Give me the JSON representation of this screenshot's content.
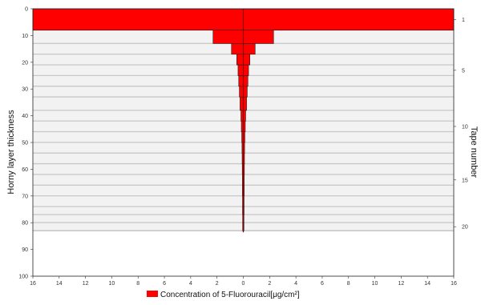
{
  "chart_data": {
    "type": "bar",
    "orientation": "horizontal-symmetric",
    "left_axis": {
      "label": "Horny layer thickness",
      "range": [
        0,
        100
      ],
      "ticks": [
        "0",
        "10",
        "20",
        "30",
        "40",
        "50",
        "60",
        "70",
        "80",
        "90",
        "100"
      ]
    },
    "right_axis": {
      "label": "Tape number",
      "ticks": [
        {
          "label": "1",
          "tape": 1
        },
        {
          "label": "5",
          "tape": 5
        },
        {
          "label": "10",
          "tape": 10
        },
        {
          "label": "15",
          "tape": 15
        },
        {
          "label": "20",
          "tape": 20
        }
      ]
    },
    "x_axis": {
      "range": [
        -16,
        16
      ],
      "ticks": [
        "16",
        "14",
        "12",
        "10",
        "8",
        "6",
        "4",
        "2",
        "0",
        "2",
        "4",
        "6",
        "8",
        "10",
        "12",
        "14",
        "16"
      ]
    },
    "legend": {
      "label": "Concentration of 5-Fluorouracil[μg/cm²]",
      "color": "#ff0000",
      "position": "bottom-center"
    },
    "tapes": [
      {
        "tape": 1,
        "depth_start": 0,
        "depth_end": 8,
        "value": 16
      },
      {
        "tape": 2,
        "depth_start": 8,
        "depth_end": 13,
        "value": 2.3
      },
      {
        "tape": 3,
        "depth_start": 13,
        "depth_end": 17,
        "value": 0.9
      },
      {
        "tape": 4,
        "depth_start": 17,
        "depth_end": 21,
        "value": 0.5
      },
      {
        "tape": 5,
        "depth_start": 21,
        "depth_end": 25,
        "value": 0.4
      },
      {
        "tape": 6,
        "depth_start": 25,
        "depth_end": 29,
        "value": 0.35
      },
      {
        "tape": 7,
        "depth_start": 29,
        "depth_end": 33,
        "value": 0.3
      },
      {
        "tape": 8,
        "depth_start": 33,
        "depth_end": 38,
        "value": 0.25
      },
      {
        "tape": 9,
        "depth_start": 38,
        "depth_end": 42,
        "value": 0.18
      },
      {
        "tape": 10,
        "depth_start": 42,
        "depth_end": 46,
        "value": 0.15
      },
      {
        "tape": 11,
        "depth_start": 46,
        "depth_end": 50,
        "value": 0.12
      },
      {
        "tape": 12,
        "depth_start": 50,
        "depth_end": 54,
        "value": 0.1
      },
      {
        "tape": 13,
        "depth_start": 54,
        "depth_end": 58,
        "value": 0.09
      },
      {
        "tape": 14,
        "depth_start": 58,
        "depth_end": 62,
        "value": 0.08
      },
      {
        "tape": 15,
        "depth_start": 62,
        "depth_end": 66,
        "value": 0.07
      },
      {
        "tape": 16,
        "depth_start": 66,
        "depth_end": 70,
        "value": 0.07
      },
      {
        "tape": 17,
        "depth_start": 70,
        "depth_end": 74,
        "value": 0.06
      },
      {
        "tape": 18,
        "depth_start": 74,
        "depth_end": 77,
        "value": 0.06
      },
      {
        "tape": 19,
        "depth_start": 77,
        "depth_end": 80,
        "value": 0.05
      },
      {
        "tape": 20,
        "depth_start": 80,
        "depth_end": 83,
        "value": 0.05
      }
    ],
    "colors": {
      "bar": "#ff0000",
      "band": "#c8c8c8",
      "frame": "#222222",
      "line": "#111111"
    }
  }
}
